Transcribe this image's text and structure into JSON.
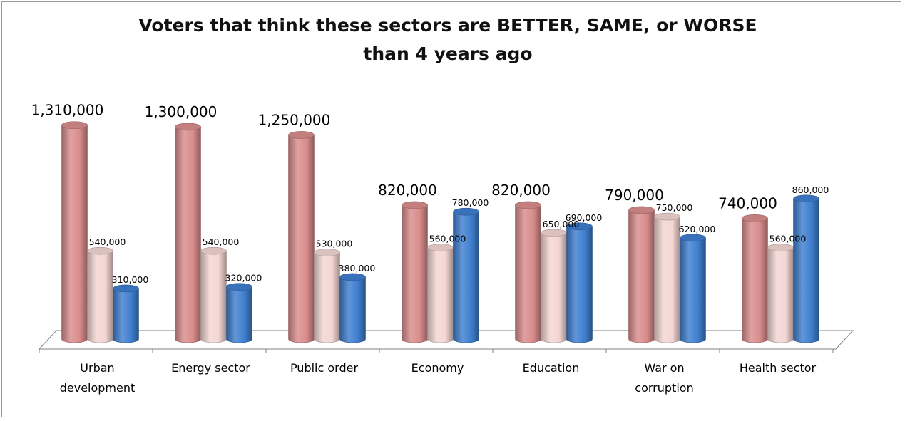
{
  "chart_data": {
    "type": "bar",
    "title_lines": [
      "Voters that think these sectors are BETTER, SAME, or WORSE",
      "than 4 years ago"
    ],
    "categories": [
      [
        "Urban",
        "development"
      ],
      [
        "Energy sector"
      ],
      [
        "Public order"
      ],
      [
        "Economy"
      ],
      [
        "Education"
      ],
      [
        "War on",
        "corruption"
      ],
      [
        "Health sector"
      ]
    ],
    "series": [
      {
        "values": [
          1310000,
          1300000,
          1250000,
          820000,
          820000,
          790000,
          740000
        ],
        "color": "#d98c8c"
      },
      {
        "values": [
          540000,
          540000,
          530000,
          560000,
          650000,
          750000,
          560000
        ],
        "color": "#f3d6d3"
      },
      {
        "values": [
          310000,
          320000,
          380000,
          780000,
          690000,
          620000,
          860000
        ],
        "color": "#3f7fcf"
      }
    ],
    "value_labels": [
      [
        "1,310,000",
        "540,000",
        "310,000"
      ],
      [
        "1,300,000",
        "540,000",
        "320,000"
      ],
      [
        "1,250,000",
        "530,000",
        "380,000"
      ],
      [
        "820,000",
        "560,000",
        "780,000"
      ],
      [
        "820,000",
        "650,000",
        "690,000"
      ],
      [
        "790,000",
        "750,000",
        "620,000"
      ],
      [
        "740,000",
        "560,000",
        "860,000"
      ]
    ],
    "ylim": [
      0,
      1400000
    ],
    "grid": false,
    "legend": "none",
    "style": "3d-cylinder"
  }
}
